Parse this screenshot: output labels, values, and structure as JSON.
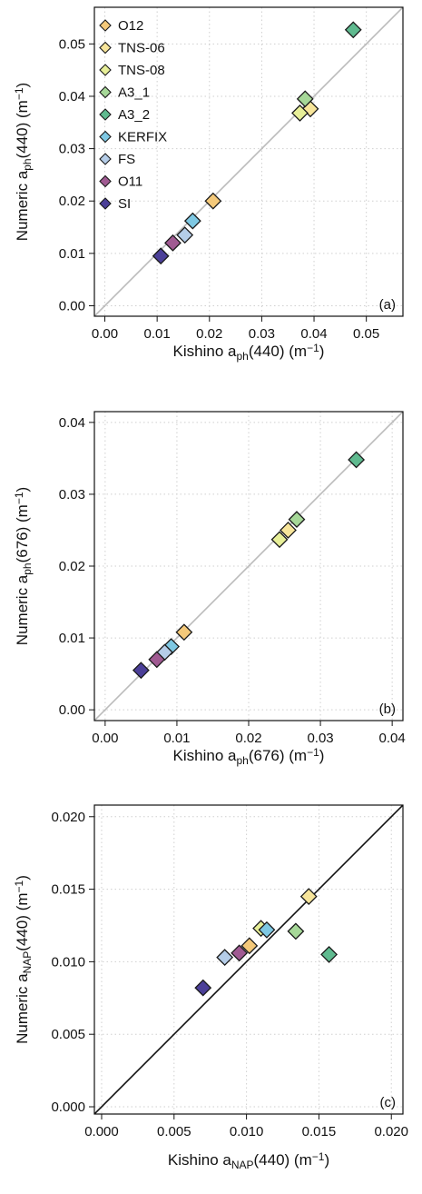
{
  "series_colors": {
    "O12": "#f4c97a",
    "TNS-06": "#f7e59a",
    "TNS-08": "#e7ef98",
    "A3_1": "#a6d898",
    "A3_2": "#5fba8f",
    "KERFIX": "#7ec8e3",
    "FS": "#b5cde8",
    "O11": "#a05a92",
    "SI": "#4b3f98"
  },
  "legend": [
    "O12",
    "TNS-06",
    "TNS-08",
    "A3_1",
    "A3_2",
    "KERFIX",
    "FS",
    "O11",
    "SI"
  ],
  "chart_data": [
    {
      "type": "scatter",
      "panel_label": "(a)",
      "xlabel": {
        "prefix": "Kishino a",
        "sub": "ph",
        "suffix": "(440) (m",
        "sup": "−1",
        "end": ")"
      },
      "ylabel": {
        "prefix": "Numeric a",
        "sub": "ph",
        "suffix": "(440) (m",
        "sup": "−1",
        "end": ")"
      },
      "xlim": [
        -0.002,
        0.057
      ],
      "ylim": [
        -0.002,
        0.057
      ],
      "xticks": [
        "0.00",
        "0.01",
        "0.02",
        "0.03",
        "0.04",
        "0.05"
      ],
      "yticks": [
        "0.00",
        "0.01",
        "0.02",
        "0.03",
        "0.04",
        "0.05"
      ],
      "tick_values": [
        0,
        0.01,
        0.02,
        0.03,
        0.04,
        0.05
      ],
      "reference_line": {
        "slope": 1,
        "color": "#bbbbbb"
      },
      "grid": true,
      "legend_position": "top-left",
      "points": [
        {
          "series": "O12",
          "x": 0.0207,
          "y": 0.02
        },
        {
          "series": "TNS-06",
          "x": 0.0393,
          "y": 0.0376
        },
        {
          "series": "TNS-08",
          "x": 0.0373,
          "y": 0.0368
        },
        {
          "series": "A3_1",
          "x": 0.0383,
          "y": 0.0395
        },
        {
          "series": "A3_2",
          "x": 0.0475,
          "y": 0.0527
        },
        {
          "series": "KERFIX",
          "x": 0.0168,
          "y": 0.0162
        },
        {
          "series": "FS",
          "x": 0.0153,
          "y": 0.0135
        },
        {
          "series": "O11",
          "x": 0.013,
          "y": 0.012
        },
        {
          "series": "SI",
          "x": 0.0107,
          "y": 0.0095
        }
      ]
    },
    {
      "type": "scatter",
      "panel_label": "(b)",
      "xlabel": {
        "prefix": "Kishino a",
        "sub": "ph",
        "suffix": "(676) (m",
        "sup": "−1",
        "end": ")"
      },
      "ylabel": {
        "prefix": "Numeric a",
        "sub": "ph",
        "suffix": "(676) (m",
        "sup": "−1",
        "end": ")"
      },
      "xlim": [
        -0.0015,
        0.0415
      ],
      "ylim": [
        -0.0015,
        0.0415
      ],
      "xticks": [
        "0.00",
        "0.01",
        "0.02",
        "0.03",
        "0.04"
      ],
      "yticks": [
        "0.00",
        "0.01",
        "0.02",
        "0.03",
        "0.04"
      ],
      "tick_values": [
        0,
        0.01,
        0.02,
        0.03,
        0.04
      ],
      "reference_line": {
        "slope": 1,
        "color": "#bbbbbb"
      },
      "grid": true,
      "points": [
        {
          "series": "O12",
          "x": 0.011,
          "y": 0.0108
        },
        {
          "series": "TNS-06",
          "x": 0.0255,
          "y": 0.025
        },
        {
          "series": "TNS-08",
          "x": 0.0243,
          "y": 0.0237
        },
        {
          "series": "A3_1",
          "x": 0.0267,
          "y": 0.0265
        },
        {
          "series": "A3_2",
          "x": 0.035,
          "y": 0.0348
        },
        {
          "series": "KERFIX",
          "x": 0.0092,
          "y": 0.0088
        },
        {
          "series": "FS",
          "x": 0.0083,
          "y": 0.008
        },
        {
          "series": "O11",
          "x": 0.0072,
          "y": 0.007
        },
        {
          "series": "SI",
          "x": 0.005,
          "y": 0.0055
        }
      ]
    },
    {
      "type": "scatter",
      "panel_label": "(c)",
      "xlabel": {
        "prefix": "Kishino a",
        "sub": "NAP",
        "suffix": "(440) (m",
        "sup": "−1",
        "end": ")"
      },
      "ylabel": {
        "prefix": "Numeric a",
        "sub": "NAP",
        "suffix": "(440) (m",
        "sup": "−1",
        "end": ")"
      },
      "xlim": [
        -0.0005,
        0.0208
      ],
      "ylim": [
        -0.0005,
        0.0208
      ],
      "xticks": [
        "0.000",
        "0.005",
        "0.010",
        "0.015",
        "0.020"
      ],
      "yticks": [
        "0.000",
        "0.005",
        "0.010",
        "0.015",
        "0.020"
      ],
      "tick_values": [
        0,
        0.005,
        0.01,
        0.015,
        0.02
      ],
      "reference_line": {
        "slope": 1,
        "color": "#111111"
      },
      "grid": true,
      "points": [
        {
          "series": "O12",
          "x": 0.0102,
          "y": 0.0111
        },
        {
          "series": "TNS-06",
          "x": 0.0143,
          "y": 0.0145
        },
        {
          "series": "TNS-08",
          "x": 0.011,
          "y": 0.0123
        },
        {
          "series": "A3_1",
          "x": 0.0134,
          "y": 0.0121
        },
        {
          "series": "A3_2",
          "x": 0.0157,
          "y": 0.0105
        },
        {
          "series": "KERFIX",
          "x": 0.0114,
          "y": 0.0122
        },
        {
          "series": "FS",
          "x": 0.0085,
          "y": 0.0103
        },
        {
          "series": "O11",
          "x": 0.0095,
          "y": 0.0106
        },
        {
          "series": "SI",
          "x": 0.007,
          "y": 0.0082
        }
      ]
    }
  ]
}
